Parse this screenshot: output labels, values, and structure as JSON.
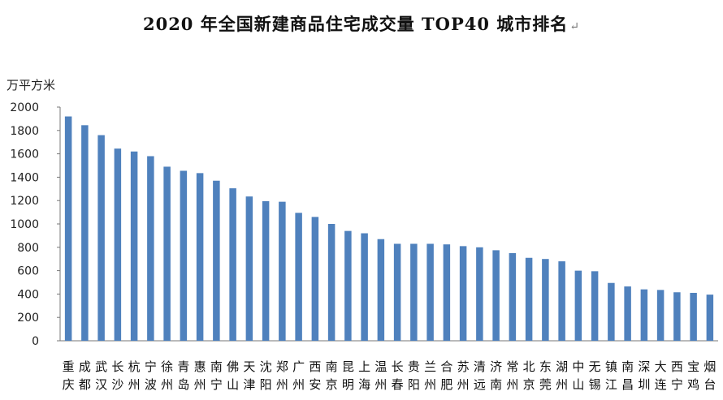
{
  "chart_data": {
    "type": "bar",
    "title": "2020 年全国新建商品住宅成交量 TOP40 城市排名",
    "title_mark": "↵",
    "ylabel": "万平方米",
    "ylim": [
      0,
      2000
    ],
    "yticks": [
      0,
      200,
      400,
      600,
      800,
      1000,
      1200,
      1400,
      1600,
      1800,
      2000
    ],
    "grid": false,
    "bar_color": "#4f81bd",
    "categories": [
      "重庆",
      "成都",
      "武汉",
      "长沙",
      "杭州",
      "宁波",
      "徐州",
      "青岛",
      "惠州",
      "南宁",
      "佛山",
      "天津",
      "沈阳",
      "郑州",
      "广州",
      "西安",
      "南京",
      "昆明",
      "上海",
      "温州",
      "长春",
      "贵阳",
      "兰州",
      "合肥",
      "苏州",
      "清远",
      "济南",
      "常州",
      "北京",
      "东莞",
      "湖州",
      "中山",
      "无锡",
      "镇江",
      "南昌",
      "深圳",
      "大连",
      "西宁",
      "宝鸡",
      "烟台"
    ],
    "values": [
      1920,
      1845,
      1760,
      1645,
      1620,
      1580,
      1490,
      1455,
      1435,
      1370,
      1305,
      1235,
      1195,
      1190,
      1095,
      1060,
      1000,
      940,
      920,
      870,
      830,
      830,
      830,
      825,
      810,
      800,
      775,
      750,
      710,
      700,
      680,
      600,
      595,
      495,
      465,
      440,
      435,
      415,
      410,
      395
    ]
  }
}
